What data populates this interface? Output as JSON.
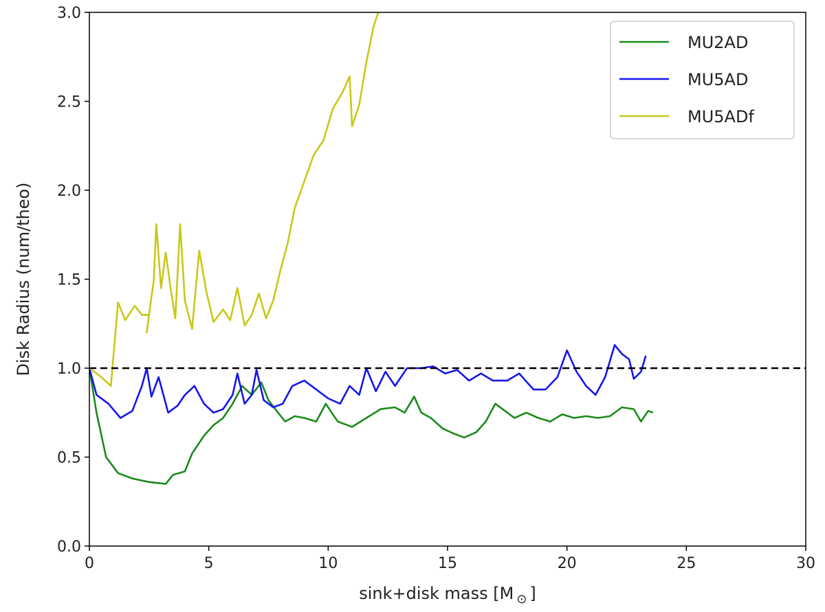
{
  "chart_data": {
    "type": "line",
    "title": "",
    "xlabel": "sink+disk mass [M",
    "xlabel_sub": "⊙",
    "xlabel_close": "]",
    "ylabel": "Disk Radius (num/theo)",
    "xlim": [
      0,
      30
    ],
    "ylim": [
      0.0,
      3.0
    ],
    "x_ticks": [
      "0",
      "5",
      "10",
      "15",
      "20",
      "25",
      "30"
    ],
    "y_ticks": [
      "0.0",
      "0.5",
      "1.0",
      "1.5",
      "2.0",
      "2.5",
      "3.0"
    ],
    "grid": false,
    "legend_position": "top-right",
    "reference_line": {
      "y": 1.0,
      "style": "dashed",
      "color": "#000000"
    },
    "series": [
      {
        "name": "MU2AD",
        "color": "#1a8a1a",
        "points": [
          [
            0.0,
            1.0
          ],
          [
            0.3,
            0.75
          ],
          [
            0.7,
            0.5
          ],
          [
            1.2,
            0.41
          ],
          [
            1.8,
            0.38
          ],
          [
            2.5,
            0.36
          ],
          [
            3.2,
            0.35
          ],
          [
            3.5,
            0.4
          ],
          [
            4.0,
            0.42
          ],
          [
            4.3,
            0.52
          ],
          [
            4.8,
            0.62
          ],
          [
            5.2,
            0.68
          ],
          [
            5.6,
            0.72
          ],
          [
            6.0,
            0.8
          ],
          [
            6.4,
            0.9
          ],
          [
            6.8,
            0.85
          ],
          [
            7.2,
            0.92
          ],
          [
            7.5,
            0.82
          ],
          [
            7.9,
            0.75
          ],
          [
            8.2,
            0.7
          ],
          [
            8.6,
            0.73
          ],
          [
            9.0,
            0.72
          ],
          [
            9.5,
            0.7
          ],
          [
            9.9,
            0.8
          ],
          [
            10.4,
            0.7
          ],
          [
            11.0,
            0.67
          ],
          [
            11.6,
            0.72
          ],
          [
            12.2,
            0.77
          ],
          [
            12.8,
            0.78
          ],
          [
            13.2,
            0.75
          ],
          [
            13.6,
            0.84
          ],
          [
            13.9,
            0.75
          ],
          [
            14.3,
            0.72
          ],
          [
            14.8,
            0.66
          ],
          [
            15.3,
            0.63
          ],
          [
            15.7,
            0.61
          ],
          [
            16.2,
            0.64
          ],
          [
            16.6,
            0.7
          ],
          [
            17.0,
            0.8
          ],
          [
            17.4,
            0.76
          ],
          [
            17.8,
            0.72
          ],
          [
            18.3,
            0.75
          ],
          [
            18.8,
            0.72
          ],
          [
            19.3,
            0.7
          ],
          [
            19.8,
            0.74
          ],
          [
            20.3,
            0.72
          ],
          [
            20.8,
            0.73
          ],
          [
            21.3,
            0.72
          ],
          [
            21.8,
            0.73
          ],
          [
            22.3,
            0.78
          ],
          [
            22.8,
            0.77
          ],
          [
            23.1,
            0.7
          ],
          [
            23.4,
            0.76
          ],
          [
            23.6,
            0.75
          ]
        ]
      },
      {
        "name": "MU5AD",
        "color": "#1515ee",
        "points": [
          [
            0.0,
            1.0
          ],
          [
            0.3,
            0.85
          ],
          [
            0.8,
            0.8
          ],
          [
            1.3,
            0.72
          ],
          [
            1.8,
            0.76
          ],
          [
            2.2,
            0.9
          ],
          [
            2.4,
            1.0
          ],
          [
            2.6,
            0.84
          ],
          [
            2.9,
            0.95
          ],
          [
            3.3,
            0.75
          ],
          [
            3.7,
            0.79
          ],
          [
            4.0,
            0.85
          ],
          [
            4.4,
            0.9
          ],
          [
            4.8,
            0.8
          ],
          [
            5.2,
            0.75
          ],
          [
            5.6,
            0.77
          ],
          [
            6.0,
            0.85
          ],
          [
            6.2,
            0.97
          ],
          [
            6.5,
            0.8
          ],
          [
            6.8,
            0.85
          ],
          [
            7.0,
            0.99
          ],
          [
            7.3,
            0.82
          ],
          [
            7.7,
            0.78
          ],
          [
            8.1,
            0.8
          ],
          [
            8.5,
            0.9
          ],
          [
            9.0,
            0.93
          ],
          [
            9.5,
            0.88
          ],
          [
            10.0,
            0.83
          ],
          [
            10.5,
            0.8
          ],
          [
            10.9,
            0.9
          ],
          [
            11.3,
            0.85
          ],
          [
            11.6,
            1.0
          ],
          [
            12.0,
            0.87
          ],
          [
            12.4,
            0.98
          ],
          [
            12.8,
            0.9
          ],
          [
            13.3,
            1.0
          ],
          [
            13.9,
            1.0
          ],
          [
            14.4,
            1.01
          ],
          [
            14.9,
            0.97
          ],
          [
            15.4,
            0.99
          ],
          [
            15.9,
            0.93
          ],
          [
            16.4,
            0.97
          ],
          [
            16.9,
            0.93
          ],
          [
            17.5,
            0.93
          ],
          [
            18.0,
            0.97
          ],
          [
            18.6,
            0.88
          ],
          [
            19.1,
            0.88
          ],
          [
            19.6,
            0.95
          ],
          [
            20.0,
            1.1
          ],
          [
            20.4,
            0.98
          ],
          [
            20.8,
            0.9
          ],
          [
            21.2,
            0.85
          ],
          [
            21.6,
            0.95
          ],
          [
            22.0,
            1.13
          ],
          [
            22.3,
            1.08
          ],
          [
            22.6,
            1.05
          ],
          [
            22.8,
            0.94
          ],
          [
            23.1,
            0.98
          ],
          [
            23.3,
            1.07
          ]
        ]
      },
      {
        "name": "MU5ADf",
        "color": "#c8c818",
        "points": [
          [
            0.0,
            1.0
          ],
          [
            0.5,
            0.95
          ],
          [
            0.9,
            0.9
          ],
          [
            1.2,
            1.37
          ],
          [
            1.5,
            1.27
          ],
          [
            1.9,
            1.35
          ],
          [
            2.2,
            1.3
          ],
          [
            2.5,
            1.3
          ],
          [
            2.4,
            1.2
          ],
          [
            2.7,
            1.5
          ],
          [
            2.8,
            1.81
          ],
          [
            3.0,
            1.45
          ],
          [
            3.2,
            1.65
          ],
          [
            3.4,
            1.45
          ],
          [
            3.6,
            1.28
          ],
          [
            3.8,
            1.81
          ],
          [
            4.0,
            1.38
          ],
          [
            4.3,
            1.22
          ],
          [
            4.6,
            1.66
          ],
          [
            4.9,
            1.43
          ],
          [
            5.2,
            1.26
          ],
          [
            5.6,
            1.33
          ],
          [
            5.9,
            1.27
          ],
          [
            6.2,
            1.45
          ],
          [
            6.5,
            1.24
          ],
          [
            6.8,
            1.3
          ],
          [
            7.1,
            1.42
          ],
          [
            7.4,
            1.28
          ],
          [
            7.7,
            1.38
          ],
          [
            8.0,
            1.55
          ],
          [
            8.3,
            1.7
          ],
          [
            8.6,
            1.9
          ],
          [
            9.0,
            2.05
          ],
          [
            9.4,
            2.2
          ],
          [
            9.8,
            2.28
          ],
          [
            10.2,
            2.46
          ],
          [
            10.6,
            2.55
          ],
          [
            10.9,
            2.64
          ],
          [
            11.0,
            2.36
          ],
          [
            11.3,
            2.48
          ],
          [
            11.6,
            2.72
          ],
          [
            11.9,
            2.92
          ],
          [
            12.1,
            3.0
          ]
        ]
      }
    ]
  }
}
